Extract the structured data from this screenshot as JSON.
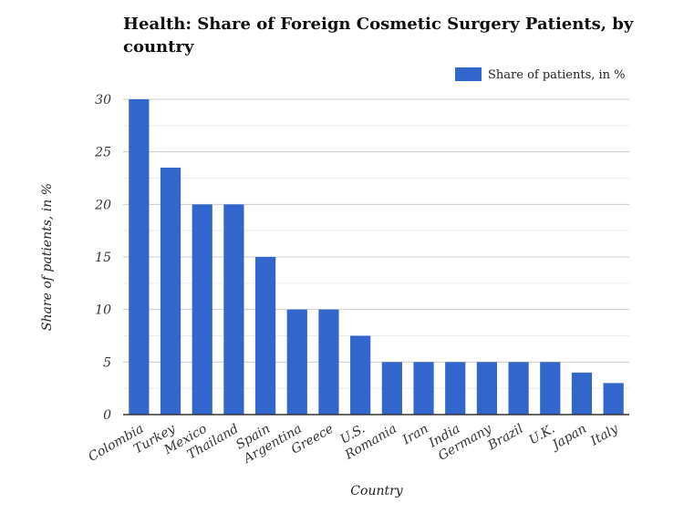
{
  "chart_data": {
    "type": "bar",
    "title": "Health: Share of Foreign Cosmetic Surgery Patients, by country",
    "xlabel": "Country",
    "ylabel": "Share of patients, in %",
    "legend": {
      "position": "top-right"
    },
    "ylim": [
      0,
      30
    ],
    "yticks": [
      0,
      5,
      10,
      15,
      20,
      25,
      30
    ],
    "grid": true,
    "color": "#3366cc",
    "categories": [
      "Colombia",
      "Turkey",
      "Mexico",
      "Thailand",
      "Spain",
      "Argentina",
      "Greece",
      "U.S.",
      "Romania",
      "Iran",
      "India",
      "Germany",
      "Brazil",
      "U.K.",
      "Japan",
      "Italy"
    ],
    "series": [
      {
        "name": "Share of patients, in %",
        "values": [
          30,
          23.5,
          20,
          20,
          15,
          10,
          10,
          7.5,
          5,
          5,
          5,
          5,
          5,
          5,
          4,
          3
        ]
      }
    ]
  }
}
